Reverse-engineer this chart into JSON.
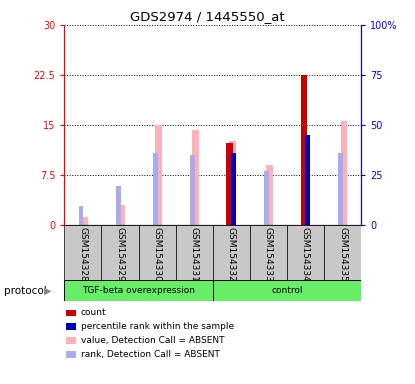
{
  "title": "GDS2974 / 1445550_at",
  "samples": [
    "GSM154328",
    "GSM154329",
    "GSM154330",
    "GSM154331",
    "GSM154332",
    "GSM154333",
    "GSM154334",
    "GSM154335"
  ],
  "pink_bars": [
    1.2,
    3.0,
    15.0,
    14.2,
    12.5,
    9.0,
    0.0,
    15.5
  ],
  "light_blue_bars": [
    2.8,
    5.8,
    10.7,
    10.5,
    0.0,
    8.0,
    0.0,
    10.8
  ],
  "red_bars": [
    0.0,
    0.0,
    0.0,
    0.0,
    12.2,
    0.0,
    22.5,
    0.0
  ],
  "blue_bars": [
    0.0,
    0.0,
    0.0,
    0.0,
    10.8,
    0.0,
    13.5,
    0.0
  ],
  "ylim_left": [
    0,
    30
  ],
  "ylim_right": [
    0,
    100
  ],
  "yticks_left": [
    0,
    7.5,
    15,
    22.5,
    30
  ],
  "yticks_right": [
    0,
    25,
    50,
    75,
    100
  ],
  "yticklabels_left": [
    "0",
    "7.5",
    "15",
    "22.5",
    "30"
  ],
  "yticklabels_right": [
    "0",
    "25",
    "50",
    "75",
    "100%"
  ],
  "color_pink": "#FFB0B8",
  "color_light_blue": "#AAAAEE",
  "color_red": "#CC0000",
  "color_blue": "#0000BB",
  "color_green": "#66EE66",
  "color_gray": "#C8C8C8",
  "protocol_label": "protocol",
  "group_labels": [
    "TGF-beta overexpression",
    "control"
  ],
  "legend_items": [
    {
      "label": "count",
      "color": "#CC0000"
    },
    {
      "label": "percentile rank within the sample",
      "color": "#0000BB"
    },
    {
      "label": "value, Detection Call = ABSENT",
      "color": "#FFB0B8"
    },
    {
      "label": "rank, Detection Call = ABSENT",
      "color": "#AAAAEE"
    }
  ],
  "background_color": "#FFFFFF"
}
